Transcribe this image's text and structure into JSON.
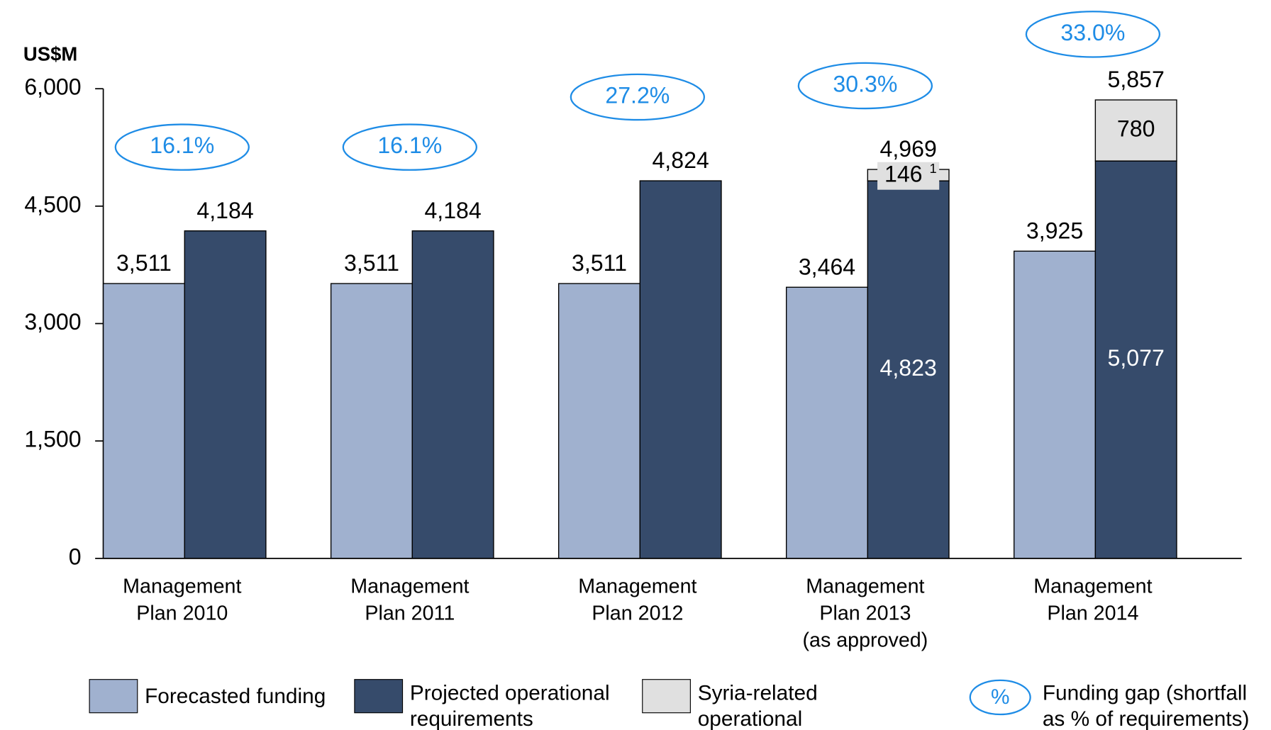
{
  "chart_data": {
    "type": "bar",
    "y_axis_label": "US$M",
    "categories": [
      [
        "Management",
        "Plan 2010"
      ],
      [
        "Management",
        "Plan 2011"
      ],
      [
        "Management",
        "Plan 2012"
      ],
      [
        "Management",
        "Plan 2013",
        "(as approved)"
      ],
      [
        "Management",
        "Plan 2014"
      ]
    ],
    "ylim": [
      0,
      6000
    ],
    "yticks": [
      0,
      {
        "value": 1500,
        "label": "1,500"
      },
      {
        "value": 3000,
        "label": "3,000"
      },
      {
        "value": 4500,
        "label": "4,500"
      },
      {
        "value": 6000,
        "label": "6,000"
      }
    ],
    "series": [
      {
        "name": "Forecasted funding",
        "color": "#a0b1cf",
        "values": [
          3511,
          3511,
          3511,
          3464,
          3925
        ],
        "value_labels": [
          "3,511",
          "3,511",
          "3,511",
          "3,464",
          "3,925"
        ]
      },
      {
        "name": "Projected operational requirements",
        "color": "#364b6b",
        "values": [
          4184,
          4184,
          4824,
          4823,
          5077
        ],
        "value_labels": [
          "4,184",
          "4,184",
          "4,824",
          "4,823",
          "5,077"
        ]
      },
      {
        "name": "Syria-related operational requirements",
        "color": "#e0e0e0",
        "stack_on": 1,
        "values": [
          null,
          null,
          null,
          146,
          780
        ],
        "value_labels": [
          null,
          null,
          null,
          "146",
          "780"
        ],
        "footnote_markers": [
          null,
          null,
          null,
          "1",
          null
        ]
      }
    ],
    "totals": [
      null,
      null,
      null,
      4969,
      5857
    ],
    "total_labels": [
      null,
      null,
      null,
      "4,969",
      "5,857"
    ],
    "funding_gap": {
      "name": "Funding gap (shortfall as % of requirements)",
      "symbol": "%",
      "color": "#1e8ce6",
      "values": [
        16.1,
        16.1,
        27.2,
        30.3,
        33.0
      ],
      "value_labels": [
        "16.1%",
        "16.1%",
        "27.2%",
        "30.3%",
        "33.0%"
      ]
    }
  }
}
